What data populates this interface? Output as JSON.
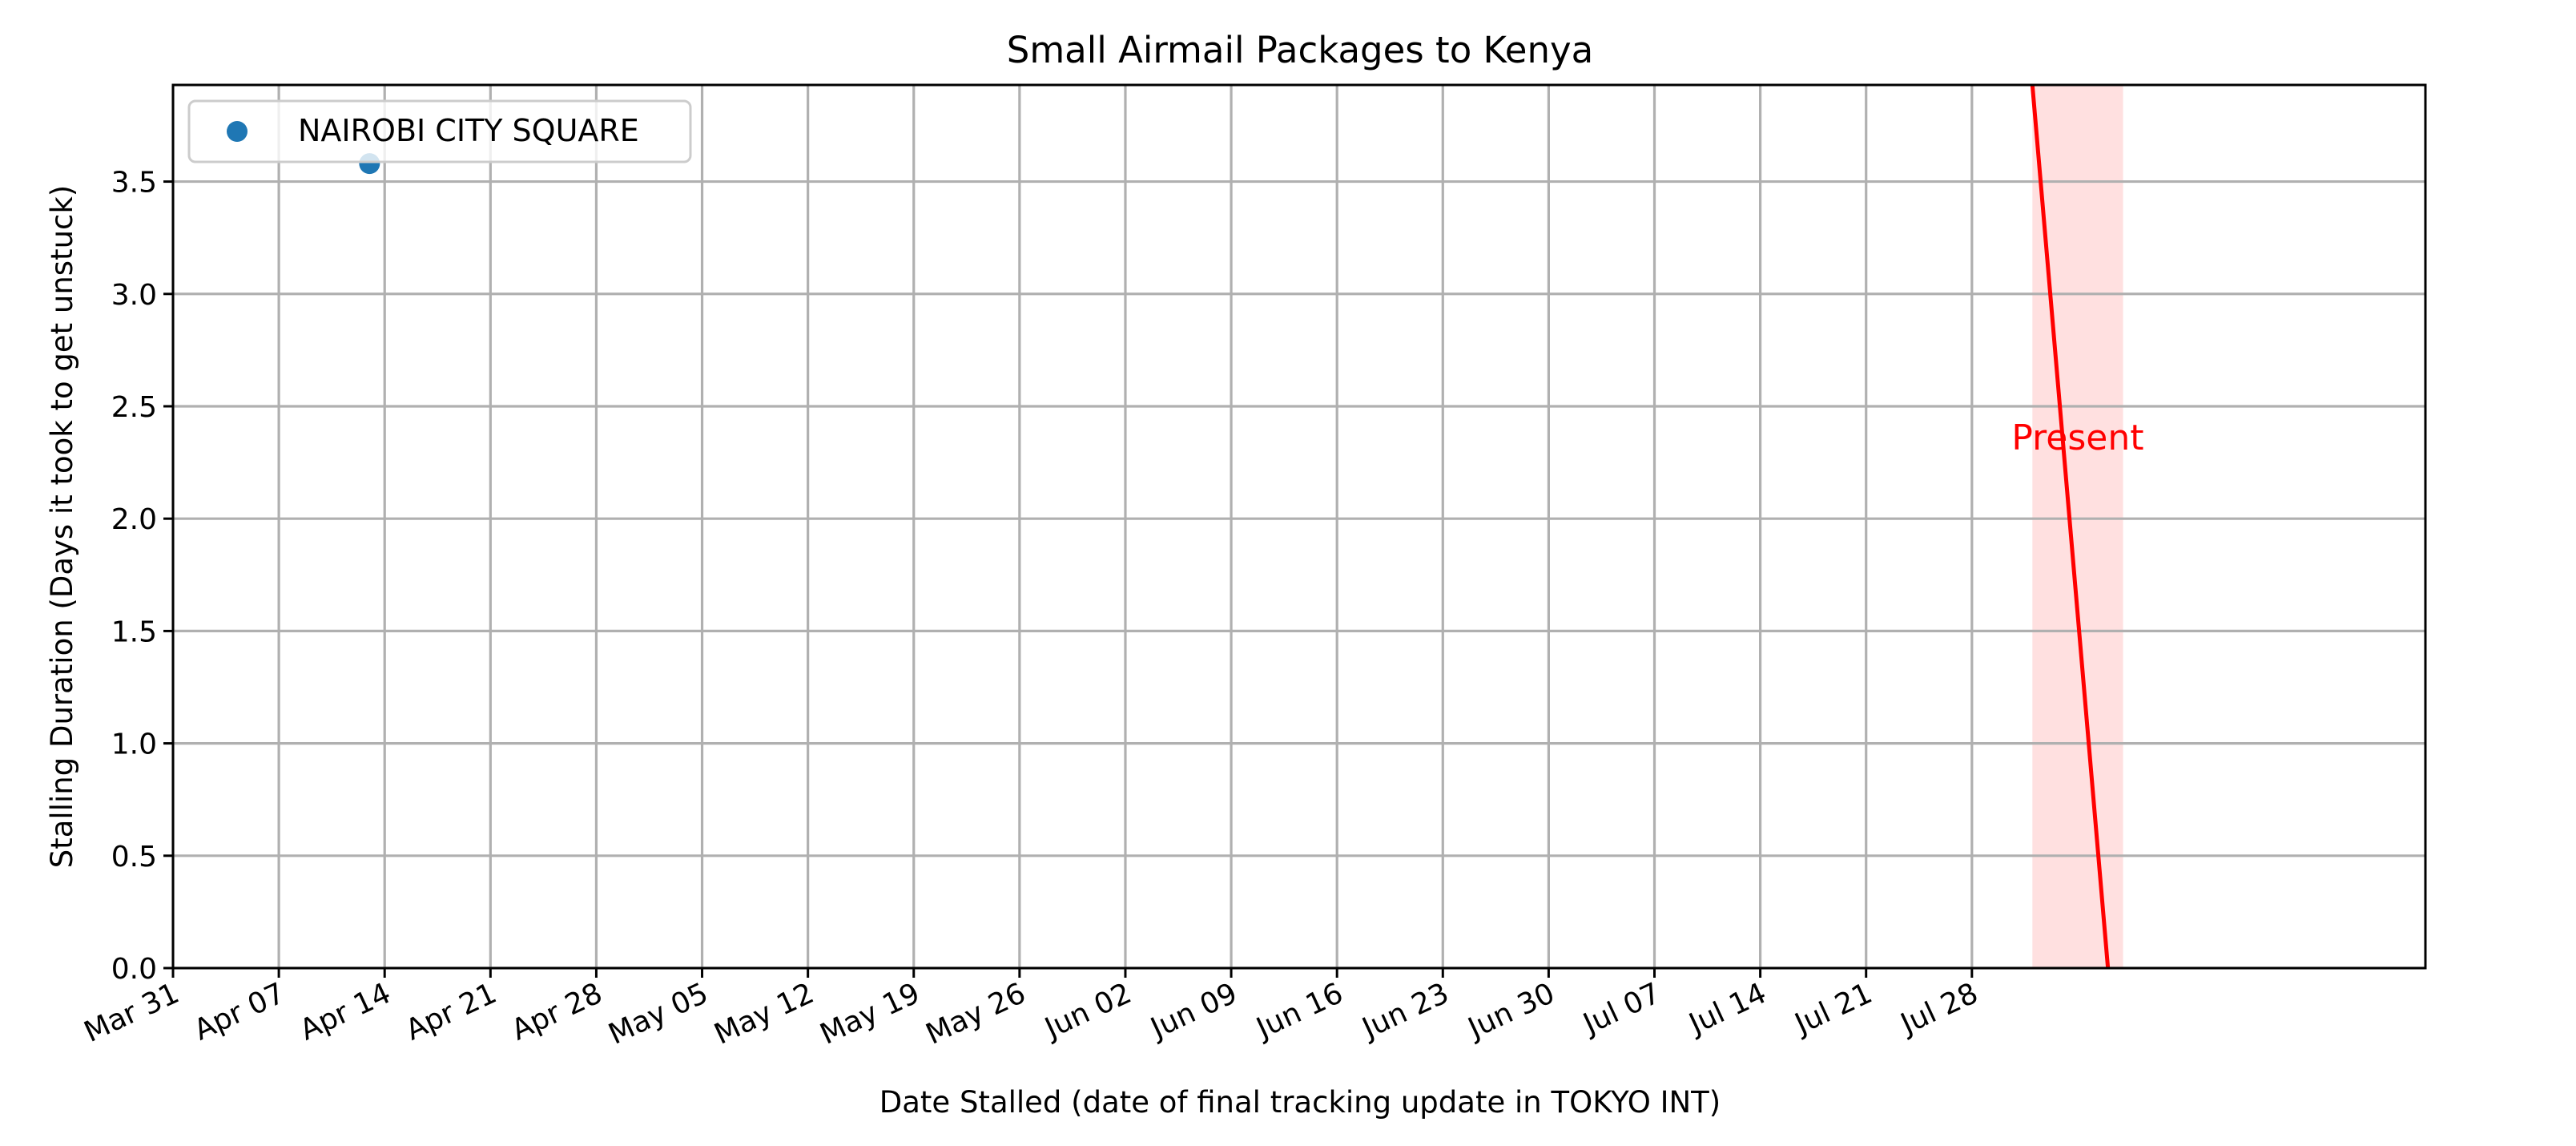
{
  "chart_data": {
    "type": "scatter",
    "title": "Small Airmail Packages to Kenya",
    "xlabel": "Date Stalled (date of final tracking update in TOKYO INT)",
    "ylabel": "Stalling Duration (Days it took to get unstuck)",
    "x_type": "date",
    "xlim": [
      "2024-03-31",
      "2024-08-27"
    ],
    "ylim": [
      0,
      3.93
    ],
    "x_ticks": [
      "2024-03-31",
      "2024-04-07",
      "2024-04-14",
      "2024-04-21",
      "2024-04-28",
      "2024-05-05",
      "2024-05-12",
      "2024-05-19",
      "2024-05-26",
      "2024-06-02",
      "2024-06-09",
      "2024-06-16",
      "2024-06-23",
      "2024-06-30",
      "2024-07-07",
      "2024-07-14",
      "2024-07-21",
      "2024-07-28"
    ],
    "x_tick_labels": [
      "Mar 31",
      "Apr 07",
      "Apr 14",
      "Apr 21",
      "Apr 28",
      "May 05",
      "May 12",
      "May 19",
      "May 26",
      "Jun 02",
      "Jun 09",
      "Jun 16",
      "Jun 23",
      "Jun 30",
      "Jul 07",
      "Jul 14",
      "Jul 21",
      "Jul 28"
    ],
    "y_ticks": [
      0.0,
      0.5,
      1.0,
      1.5,
      2.0,
      2.5,
      3.0,
      3.5
    ],
    "y_tick_labels": [
      "0.0",
      "0.5",
      "1.0",
      "1.5",
      "2.0",
      "2.5",
      "3.0",
      "3.5"
    ],
    "grid": true,
    "legend_position": "top-left",
    "series": [
      {
        "name": "NAIROBI CITY SQUARE",
        "color": "#1f77b4",
        "points": [
          {
            "x": "2024-04-13",
            "y": 3.58
          }
        ]
      }
    ],
    "present_marker": {
      "label": "Present",
      "color": "#ff0000",
      "shade_color": "#ffcccc",
      "line_start": {
        "x": "2024-08-01",
        "y": 3.93
      },
      "line_end": {
        "x": "2024-08-06",
        "y": 0
      },
      "shade_range": [
        "2024-08-01",
        "2024-08-07"
      ],
      "label_position": {
        "x": "2024-08-04",
        "y": 2.35
      }
    }
  }
}
